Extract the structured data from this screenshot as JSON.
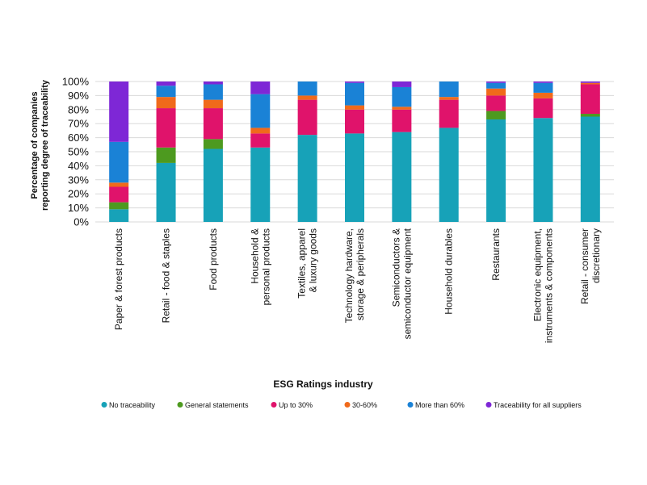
{
  "chart_data": {
    "type": "bar",
    "stacked": true,
    "xlabel": "ESG Ratings industry",
    "ylabel_lines": [
      "Percentage of companies",
      "reporting degree of traceability"
    ],
    "ylim": [
      0,
      100
    ],
    "yticks": [
      "0%",
      "10%",
      "20%",
      "30%",
      "40%",
      "50%",
      "60%",
      "70%",
      "80%",
      "90%",
      "100%"
    ],
    "grid": true,
    "legend_position": "bottom",
    "categories": [
      [
        "Paper & forest products"
      ],
      [
        "Retail - food & staples"
      ],
      [
        "Food products"
      ],
      [
        "Household &",
        "personal products"
      ],
      [
        "Textiles, apparel",
        "& luxury goods"
      ],
      [
        "Technology hardware,",
        "storage & peripherals"
      ],
      [
        "Semiconductors &",
        "semiconductor equipment"
      ],
      [
        "Household durables"
      ],
      [
        "Restaurants"
      ],
      [
        "Electronic equipment,",
        "instruments & components"
      ],
      [
        "Retail - consumer",
        "discretionary"
      ]
    ],
    "series": [
      {
        "name": "No traceability",
        "color": "#17a2b8",
        "values": [
          9,
          42,
          52,
          53,
          62,
          63,
          64,
          67,
          73,
          74,
          75
        ]
      },
      {
        "name": "General statements",
        "color": "#4d9a1f",
        "values": [
          5,
          11,
          7,
          0,
          0,
          0,
          0,
          0,
          6,
          0,
          2
        ]
      },
      {
        "name": "Up to 30%",
        "color": "#e0136b",
        "values": [
          11,
          28,
          22,
          10,
          25,
          17,
          16,
          20,
          11,
          14,
          21
        ]
      },
      {
        "name": "30-60%",
        "color": "#f06a1b",
        "values": [
          3,
          8,
          6,
          4,
          3,
          3,
          2,
          2,
          5,
          4,
          1
        ]
      },
      {
        "name": "More than 60%",
        "color": "#1a82d6",
        "values": [
          29,
          8,
          11,
          24,
          10,
          16,
          14,
          11,
          4,
          7,
          0
        ]
      },
      {
        "name": "Traceability for all suppliers",
        "color": "#7e27d6",
        "values": [
          43,
          3,
          2,
          9,
          0,
          1,
          4,
          0,
          1,
          1,
          1
        ]
      }
    ]
  }
}
